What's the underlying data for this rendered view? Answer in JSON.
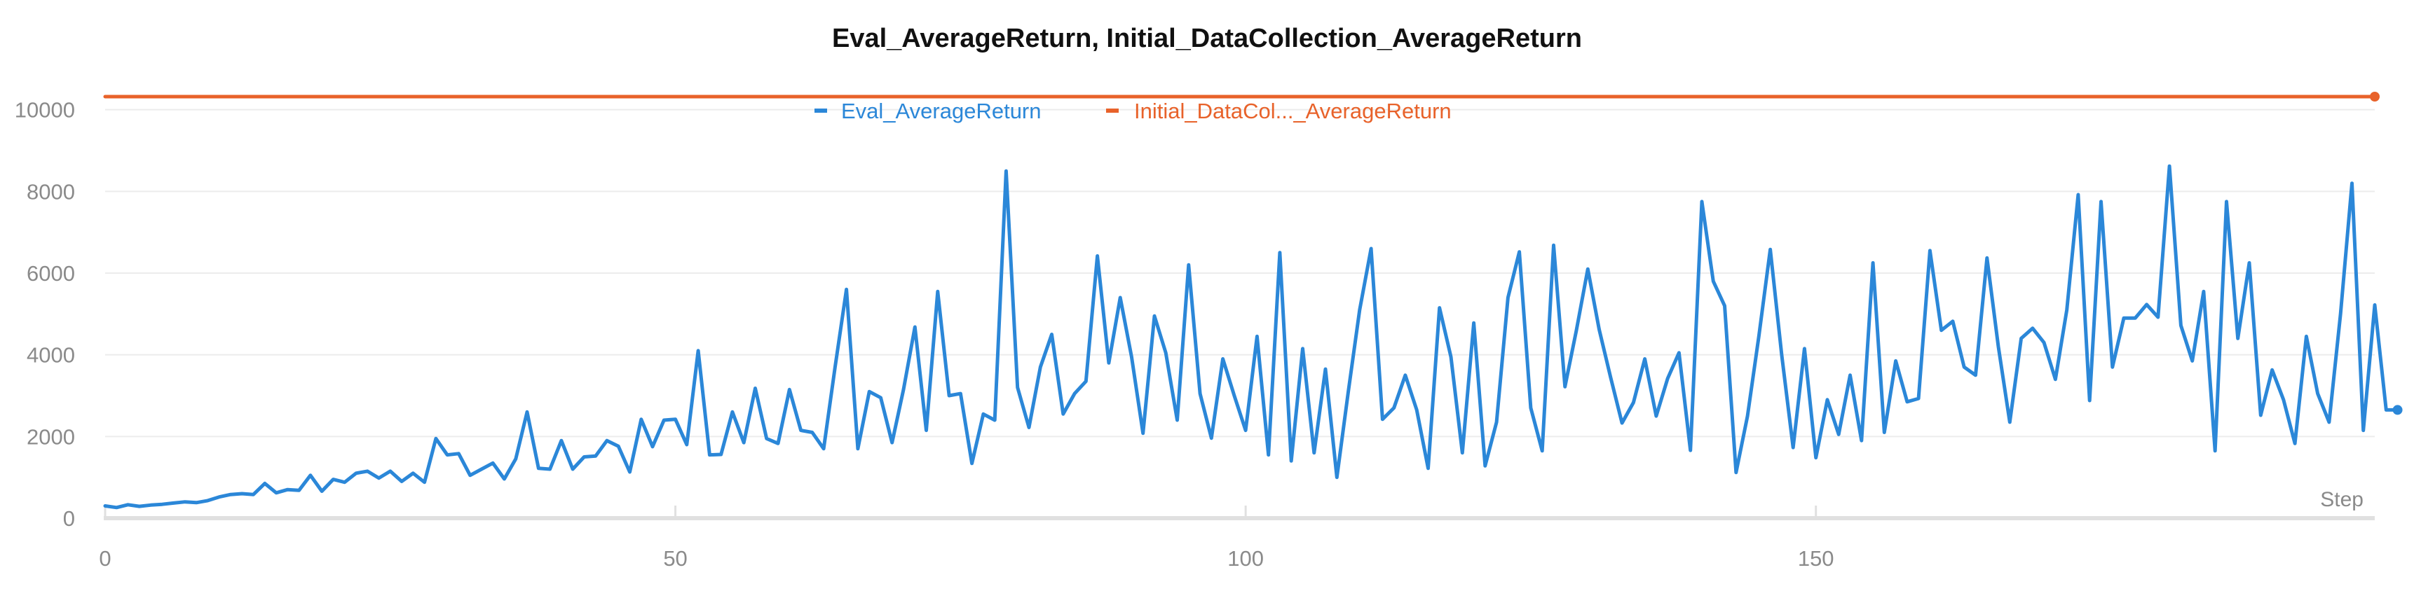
{
  "chart_data": {
    "type": "line",
    "title": "Eval_AverageReturn, Initial_DataCollection_AverageReturn",
    "xlabel": "Step",
    "ylabel": "",
    "xlim": [
      0,
      199
    ],
    "ylim": [
      0,
      10800
    ],
    "x_ticks": [
      "0",
      "50",
      "100",
      "150"
    ],
    "y_ticks": [
      "0",
      "2000",
      "4000",
      "6000",
      "8000",
      "10000"
    ],
    "grid": true,
    "legend_position": "top-center",
    "series": [
      {
        "name": "Eval_AverageReturn",
        "legend_label": "Eval_AverageReturn",
        "color": "#2b87d8",
        "values": [
          300,
          260,
          330,
          290,
          320,
          340,
          370,
          400,
          380,
          430,
          520,
          580,
          600,
          580,
          850,
          620,
          700,
          680,
          1050,
          660,
          950,
          880,
          1100,
          1150,
          980,
          1150,
          900,
          1100,
          880,
          1950,
          1550,
          1580,
          1050,
          1200,
          1350,
          960,
          1450,
          2600,
          1220,
          1200,
          1900,
          1200,
          1500,
          1520,
          1900,
          1760,
          1130,
          2420,
          1750,
          2400,
          2420,
          1800,
          4100,
          1550,
          1560,
          2600,
          1850,
          3180,
          1950,
          1830,
          3150,
          2150,
          2100,
          1700,
          3700,
          5600,
          1700,
          3100,
          2950,
          1850,
          3150,
          4680,
          2150,
          5550,
          3000,
          3050,
          1340,
          2550,
          2400,
          8500,
          3200,
          2220,
          3700,
          4500,
          2550,
          3050,
          3350,
          6420,
          3800,
          5400,
          3950,
          2080,
          4950,
          4050,
          2400,
          6200,
          3050,
          1960,
          3900,
          3000,
          2150,
          4450,
          1550,
          6500,
          1400,
          4150,
          1600,
          3650,
          1000,
          3100,
          5100,
          6600,
          2420,
          2700,
          3500,
          2650,
          1220,
          5150,
          3950,
          1600,
          4780,
          1280,
          2350,
          5400,
          6520,
          2700,
          1650,
          6680,
          3220,
          4600,
          6100,
          4620,
          3450,
          2330,
          2830,
          3900,
          2500,
          3420,
          4050,
          1660,
          7750,
          5800,
          5200,
          1120,
          2500,
          4450,
          6580,
          4000,
          1730,
          4150,
          1480,
          2900,
          2050,
          3500,
          1900,
          6250,
          2100,
          3850,
          2850,
          2930,
          6550,
          4600,
          4820,
          3700,
          3500,
          6370,
          4200,
          2350,
          4400,
          4650,
          4300,
          3400,
          5100,
          7920,
          2880,
          7750,
          3700,
          4900,
          4900,
          5230,
          4920,
          8620,
          4720,
          3850,
          5550,
          1650,
          7750,
          4400,
          6250,
          2520,
          3630,
          2900,
          1830,
          4450,
          3050,
          2350,
          5000,
          8200,
          2150,
          5220,
          2650,
          2650
        ]
      },
      {
        "name": "Initial_DataCollection_AverageReturn",
        "legend_label": "Initial_DataCol..._AverageReturn",
        "color": "#e8622a",
        "values": [
          10320,
          10320
        ],
        "x": [
          0,
          199
        ]
      }
    ]
  }
}
